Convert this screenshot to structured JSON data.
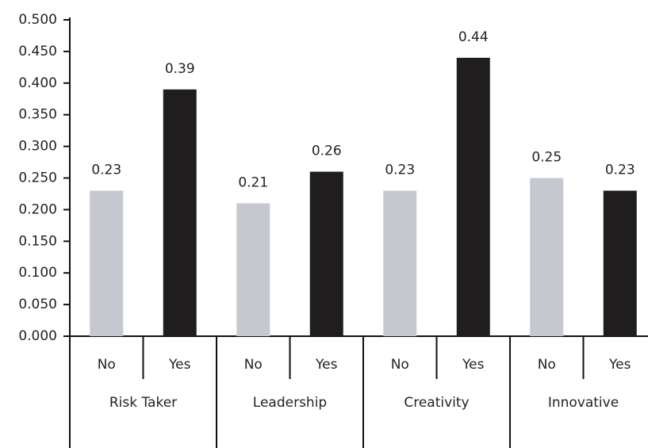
{
  "chart_data": {
    "type": "grouped_bar",
    "categories": [
      "Risk Taker",
      "Leadership",
      "Creativity",
      "Innovative"
    ],
    "series": [
      {
        "name": "No",
        "color": "#c5c8ce",
        "values": [
          0.23,
          0.21,
          0.23,
          0.25
        ]
      },
      {
        "name": "Yes",
        "color": "#1f1d1d",
        "values": [
          0.39,
          0.26,
          0.44,
          0.23
        ]
      }
    ],
    "ylim": [
      0,
      0.5
    ],
    "yticks": [
      {
        "value": 0,
        "label": "0.000"
      },
      {
        "value": 0.05,
        "label": "0.050"
      },
      {
        "value": 0.1,
        "label": "0.100"
      },
      {
        "value": 0.15,
        "label": "0.150"
      },
      {
        "value": 0.2,
        "label": "0.200"
      },
      {
        "value": 0.25,
        "label": "0.250"
      },
      {
        "value": 0.3,
        "label": "0.300"
      },
      {
        "value": 0.35,
        "label": "0.350"
      },
      {
        "value": 0.4,
        "label": "0.400"
      },
      {
        "value": 0.45,
        "label": "0.450"
      },
      {
        "value": 0.5,
        "label": "0.500"
      }
    ]
  }
}
